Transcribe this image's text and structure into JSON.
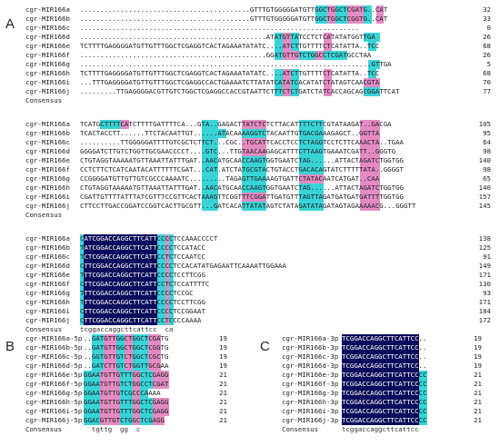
{
  "colors": {
    "identical": "#0b0b5e",
    "high_similarity": "#37d4d8",
    "low_similarity": "#e58bc4"
  },
  "panels": {
    "A": {
      "label": "A",
      "blocks": [
        {
          "rows": [
            {
              "name": "cgr-MIR166a",
              "seq": "..........................................GTTTGTGGGGGATGTTGGCTGGCTCGATG..CAT",
              "count": "32"
            },
            {
              "name": "cgr-MIR166b",
              "seq": "..........................................GTTTGTGGGGGATGTTGGCTGGCTCGGTG..CAT",
              "count": "33"
            },
            {
              "name": "cgr-MIR166c",
              "seq": ".....................................................................",
              "count": "0"
            },
            {
              "name": "cgr-MIR166d",
              "seq": "..............................................ATATGTTATCCTCTCATATATGGTTGA",
              "count": "26"
            },
            {
              "name": "cgr-MIR166e",
              "seq": "TCTTTTGAGGGGATGTTGTTTGGCTCGAGGTCACTAGAAATATATC....ATCTTGTTTTCTCATATTA..TCC",
              "count": "68"
            },
            {
              "name": "cgr-MIR166f",
              "seq": "..............................................GGATGTTGTCTGGCCTCGATGCCTAA",
              "count": "26"
            },
            {
              "name": "cgr-MIR166g",
              "seq": "........................................................................GTTGA",
              "count": "5"
            },
            {
              "name": "cgr-MIR166h",
              "seq": "TCTTTTGAGGGGATGTTGTTTGGCTCGAGGTCACTAGAAATATATC....ATCTTGTTTTCTCATATTA..TCC",
              "count": "68"
            },
            {
              "name": "cgr-MIR166i",
              "seq": "...TTTGAGGGGATGTTGTTTGGCTCGAGGCCACTGAAAATCTTATATCATATCACATATCTATAGTCAACGTA",
              "count": "70"
            },
            {
              "name": "cgr-MIR166j",
              "seq": ".........TTGAGGGGACGTTGTCTGGCTCGAGGCCACCGTAATTCTTTCTCTGATCTATCACCAGCAGCGGATTCAT",
              "count": "77"
            }
          ],
          "consensus": {
            "name": "Consensus",
            "seq": ""
          }
        },
        {
          "rows": [
            {
              "name": "cgr-MIR166a",
              "seq": "TCATGCTTTTCATCTTTTGATTTTCA...GTA..GAGACTTATCTCTCTTACATTTTCTTCGTATAAGAT..GACGA",
              "count": "105"
            },
            {
              "name": "cgr-MIR166b",
              "seq": "TCACTACCTT......TTCTACAATTGT......ATACAAAAGGTCTACAATTGTGACGAAAGAGCT..GGTTA",
              "count": "95"
            },
            {
              "name": "cgr-MIR166c",
              "seq": "..........TTGGGGGATTTTGTCGCTCTTCT...CGC..TGCATTCACCTCCTCTAGGTCCTCTTCAAACTA..TGAA",
              "count": "64"
            },
            {
              "name": "cgr-MIR166d",
              "seq": "GGGGATCTTGTCTGGTTGCGAACCCCT....GTC...TTGTAACAAGAGCATTTCTTAAGTGAAATCGATT..GGGTG",
              "count": "98"
            },
            {
              "name": "cgr-MIR166e",
              "seq": "CTGTAGGTAAAAATGTTAAATTATTTGAT..AACATGCAACCAAGTGGTGAATCTAG......ATTACTAGATCTGGTGG",
              "count": "140"
            },
            {
              "name": "cgr-MIR166f",
              "seq": "CCTCTTCTCATCAATACATTTTTTCGAT...CAT.ATCTATGCGTACTGTACCTGACACAGTATCTTTTTATA..GGGGT",
              "count": "98"
            },
            {
              "name": "cgr-MIR166g",
              "seq": "CCGGGGATGTTGTTGTCGCCCAAAATC.........TAGAGTTGAAAAGTGATTCTATACAATCATGAT..CAA",
              "count": "65"
            },
            {
              "name": "cgr-MIR166h",
              "seq": "CTGTAGGTAAAAATGTTAAATTATTTGAT..AACATGCAACCAAGTGGTGAATCTAG......ATTACTAGATCTGGTGG",
              "count": "140"
            },
            {
              "name": "cgr-MIR166i",
              "seq": "CGATTGTTTTATTTATCGTTTCCGTTCACTAAAGTTCGGTTTCGGATTGATGTTTAGTTAGATGATGATGATTTTGGTGG",
              "count": "157"
            },
            {
              "name": "cgr-MIR166j",
              "seq": "CTTCCTTGACCGGATCCGGTCACTTGCGTT...GATCACATTATATAGTCTATAGATATAGATAGTAGAAAAACG...GGGTT",
              "count": "145"
            }
          ],
          "consensus": {
            "name": "Consensus",
            "seq": ""
          }
        },
        {
          "rows": [
            {
              "name": "cgr-MIR166a",
              "seq": "CATCGGACCAGGCTTCATTCCCCTCCAAACCCCT",
              "count": "138"
            },
            {
              "name": "cgr-MIR166b",
              "seq": "TATCGGACCAGGCTTCATTCCCCTCCATACC",
              "count": "125"
            },
            {
              "name": "cgr-MIR166c",
              "seq": "TCTCGGACCAGGCTTCATTCCTCTCCAATCC",
              "count": "91"
            },
            {
              "name": "cgr-MIR166d",
              "seq": "CTTCGGACCAGGCTTCATTCCCCTCCACATATGAGAATTCAAAATTGGAAA",
              "count": "149"
            },
            {
              "name": "cgr-MIR166e",
              "seq": "TTTCGGACCAGGCTTCATTCCCCTCCTTCGG",
              "count": "171"
            },
            {
              "name": "cgr-MIR166f",
              "seq": "CTTCGGACCAGGCTTCATTCCTCTCCATTTTC",
              "count": "130"
            },
            {
              "name": "cgr-MIR166g",
              "seq": "TTTCGGACCAGGCTTCATTCCCCTCCGC",
              "count": "93"
            },
            {
              "name": "cgr-MIR166h",
              "seq": "TTTCGGACCAGGCTTCATTCCCCTCCTTCGG",
              "count": "171"
            },
            {
              "name": "cgr-MIR166i",
              "seq": "CTTCGGACCAGGCTTCATTCCCCTCCGGAAT",
              "count": "184"
            },
            {
              "name": "cgr-MIR166j",
              "seq": "CTTCGGACCAGGCTTCATTCCTCCCCAAAA",
              "count": "172"
            }
          ],
          "consensus": {
            "name": "Consensus",
            "seq": "tcggaccaggcttcattcc  ca"
          }
        }
      ]
    },
    "B": {
      "label": "B",
      "rows": [
        {
          "name": "cgr-MIR166a-5p",
          "seq": "..GATGTTGGCTGGCTCGATG",
          "count": "19"
        },
        {
          "name": "cgr-MIR166b-5p",
          "seq": "..GATGTTGGCTGGCTCGGTG",
          "count": "19"
        },
        {
          "name": "cgr-MIR166c-5p",
          "seq": "..GGTGTTGTCTGGCTCGCTG",
          "count": "19"
        },
        {
          "name": "cgr-MIR166d-5p",
          "seq": "..GATCTTGTCTGGTTGCGAA",
          "count": "19"
        },
        {
          "name": "cgr-MIR166e-5p",
          "seq": "GGAATGTTGTTTGGCTCGAGG",
          "count": "21"
        },
        {
          "name": "cgr-MIR166f-5p",
          "seq": "GGAATGTTGTCTGGCCTCGAT",
          "count": "21"
        },
        {
          "name": "cgr-MIR166g-5p",
          "seq": "GGAATGTTGTCGCCCAAAA",
          "count": "21"
        },
        {
          "name": "cgr-MIR166h-5p",
          "seq": "GGAATGTTGTTTGGCTCGAGG",
          "count": "21"
        },
        {
          "name": "cgr-MIR166i-5p",
          "seq": "GGAATGTTGTTTGGCTCGAGG",
          "count": "21"
        },
        {
          "name": "cgr-MIR166j-5p",
          "seq": "GGACGTTGTCTGGCTCGAGG",
          "count": "21"
        }
      ],
      "consensus": {
        "name": "Consensus",
        "seq": "tgttg  gg  c"
      }
    },
    "C": {
      "label": "C",
      "rows": [
        {
          "name": "cgr-MIR166a-3p",
          "seq": "TCGGACCAGGCTTCATTCC..",
          "count": "19"
        },
        {
          "name": "cgr-MIR166b-3p",
          "seq": "TCGGACCAGGCTTCATTCC..",
          "count": "19"
        },
        {
          "name": "cgr-MIR166c-3p",
          "seq": "TCGGACCAGGCTTCATTCC..",
          "count": "19"
        },
        {
          "name": "cgr-MIR166d-3p",
          "seq": "TCGGACCAGGCTTCATTCC..",
          "count": "19"
        },
        {
          "name": "cgr-MIR166e-3p",
          "seq": "TCGGACCAGGCTTCATTCCCC",
          "count": "21"
        },
        {
          "name": "cgr-MIR166f-3p",
          "seq": "TCGGACCAGGCTTCATTCCCC",
          "count": "21"
        },
        {
          "name": "cgr-MIR166g-3p",
          "seq": "TCGGACCAGGCTTCATTCCCC",
          "count": "21"
        },
        {
          "name": "cgr-MIR166h-3p",
          "seq": "TCGGACCAGGCTTCATTCCCC",
          "count": "21"
        },
        {
          "name": "cgr-MIR166i-3p",
          "seq": "TCGGACCAGGCTTCATTCCCC",
          "count": "21"
        },
        {
          "name": "cgr-MIR166j-3p",
          "seq": "TCGGACCAGGCTTCATTCCCC",
          "count": "21"
        }
      ],
      "consensus": {
        "name": "Consensus",
        "seq": "tcggaccaggcttcattcc"
      }
    }
  }
}
